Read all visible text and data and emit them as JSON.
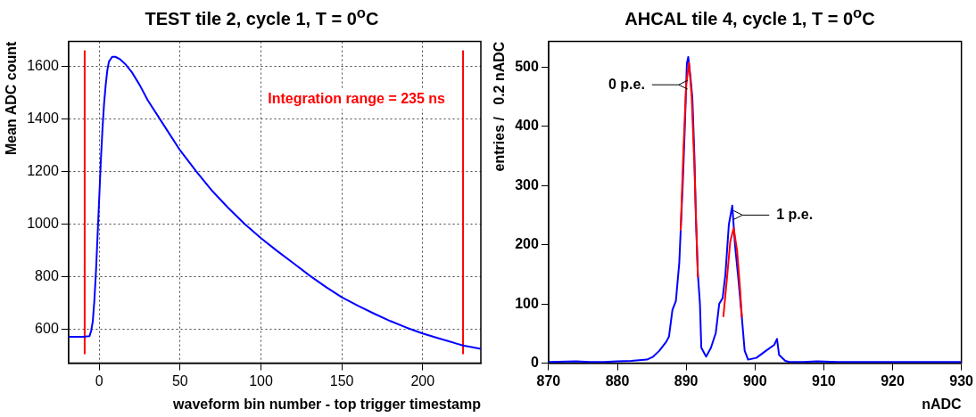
{
  "chart_data": [
    {
      "type": "line",
      "title": "TEST tile 2, cycle 1, T = 0$^{o}$C",
      "xlabel": "waveform bin number - top trigger timestamp",
      "ylabel": "Mean ADC count",
      "xlim": [
        -19,
        236
      ],
      "xticks": [
        0,
        50,
        100,
        150,
        200
      ],
      "ylim": [
        472,
        1693
      ],
      "yticks": [
        600,
        800,
        1000,
        1200,
        1400,
        1600
      ],
      "grid": true,
      "series": [
        {
          "color": "#0000ff",
          "x": [
            -19,
            -10,
            -6,
            -5,
            -4,
            -3,
            -2,
            -1,
            0,
            1,
            2,
            3,
            4,
            5,
            6,
            8,
            10,
            13,
            16,
            20,
            25,
            30,
            40,
            50,
            60,
            70,
            80,
            90,
            100,
            110,
            120,
            130,
            140,
            150,
            160,
            170,
            180,
            190,
            200,
            210,
            220,
            225,
            236
          ],
          "values": [
            572,
            572,
            575,
            595,
            630,
            711,
            822,
            961,
            1100,
            1242,
            1361,
            1458,
            1528,
            1584,
            1617,
            1635,
            1635,
            1625,
            1608,
            1578,
            1528,
            1470,
            1375,
            1280,
            1200,
            1125,
            1060,
            1000,
            947,
            898,
            852,
            805,
            762,
            722,
            690,
            660,
            632,
            607,
            585,
            566,
            548,
            539,
            526
          ]
        }
      ],
      "ref_lines": [
        {
          "axis": "x",
          "value": -9,
          "color": "#ff0000"
        },
        {
          "axis": "x",
          "value": 225,
          "color": "#ff0000"
        }
      ],
      "annotations": [
        "Integration range = 235 ns"
      ]
    },
    {
      "type": "line",
      "title": "AHCAL tile 4, cycle 1, T = 0$^{o}$C",
      "xlabel": "nADC",
      "ylabel": "entries /   0.2 nADC",
      "xlim": [
        870,
        930
      ],
      "xticks": [
        870,
        880,
        890,
        900,
        910,
        920,
        930
      ],
      "ylim": [
        0,
        543
      ],
      "yticks": [
        0,
        100,
        200,
        300,
        400,
        500
      ],
      "grid": false,
      "series": [
        {
          "color": "#0000ff",
          "x": [
            870,
            874,
            876,
            878,
            880,
            882,
            884.3,
            885.2,
            886.1,
            887.1,
            887.5,
            888,
            888.5,
            889,
            889.2,
            889.5,
            889.8,
            890.1,
            890.3,
            890.6,
            890.9,
            891.2,
            891.4,
            891.7,
            892,
            892.2,
            892.9,
            893.6,
            894.3,
            894.8,
            895.3,
            895.7,
            896.2,
            896.7,
            897.1,
            897.6,
            898.1,
            898.5,
            899,
            900.2,
            901.6,
            902.8,
            903.2,
            903.5,
            904.4,
            905,
            907,
            909,
            912,
            930
          ],
          "values": [
            2,
            3,
            2,
            2,
            3,
            4,
            6,
            11,
            21,
            36,
            45,
            90,
            105,
            170,
            224,
            302,
            397,
            506,
            517,
            486,
            447,
            348,
            249,
            150,
            100,
            26,
            11,
            26,
            51,
            100,
            110,
            150,
            234,
            266,
            199,
            140,
            76,
            21,
            6,
            9,
            21,
            31,
            41,
            14,
            4,
            2,
            2,
            3,
            2,
            2
          ]
        },
        {
          "color": "#ff0000",
          "x": [
            889.2,
            889.6,
            890.0,
            890.4,
            890.8,
            891.2,
            891.7
          ],
          "values": [
            224,
            360,
            470,
            507,
            450,
            330,
            145
          ]
        },
        {
          "color": "#ff0000",
          "x": [
            895.4,
            895.9,
            896.4,
            896.9,
            897.4,
            897.8,
            898.1
          ],
          "values": [
            78,
            140,
            205,
            228,
            190,
            130,
            77
          ]
        }
      ],
      "annotations": [
        {
          "text": "0 p.e.",
          "x": 889.7,
          "y": 470
        },
        {
          "text": "1 p.e.",
          "x": 897.4,
          "y": 250
        }
      ]
    }
  ]
}
